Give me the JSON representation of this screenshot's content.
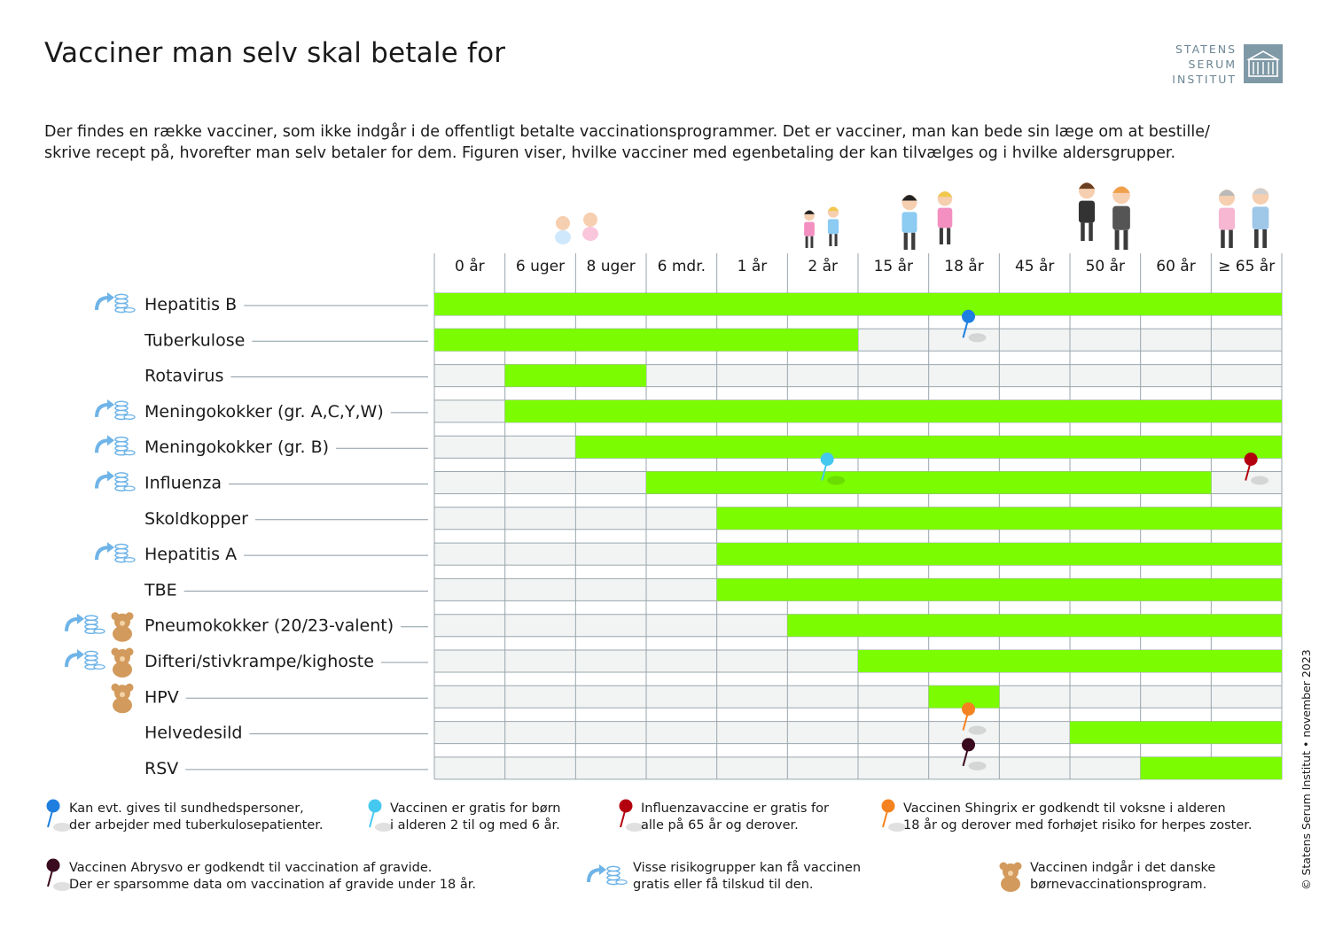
{
  "title": "Vacciner man selv skal betale for",
  "intro": {
    "line1": "Der findes en række vacciner, som ikke indgår i de offentligt betalte vaccinationsprogrammer. Det er vacciner, man kan bede sin læge om at bestille/",
    "line2": "skrive recept på, hvorefter man selv betaler for dem. Figuren viser, hvilke vacciner med egenbetaling der kan tilvælges og i hvilke aldersgrupper."
  },
  "logo": {
    "line1": "STATENS",
    "line2": "SERUM",
    "line3": "INSTITUT",
    "icon": "building-icon"
  },
  "copyright": "© Statens Serum Institut • november 2023",
  "colors": {
    "bar": "#7cfc00",
    "cell": "#f1f4f3",
    "grid": "#9aa6ad",
    "pin_blue": "#1f7fe0",
    "pin_cyan": "#45c8f0",
    "pin_red": "#b3000f",
    "pin_orange": "#f58220",
    "pin_dark": "#3a0a1f",
    "arrow": "#6fb4e8",
    "bear": "#d29a5c"
  },
  "chart_data": {
    "type": "table",
    "columns": [
      "0 år",
      "6 uger",
      "8 uger",
      "6 mdr.",
      "1 år",
      "2 år",
      "15 år",
      "18 år",
      "45 år",
      "50 år",
      "60 år",
      "≥ 65 år"
    ],
    "rows": [
      {
        "name": "Hepatitis B",
        "start": 0,
        "end": 12,
        "risk": true,
        "child": false,
        "pin": null
      },
      {
        "name": "Tuberkulose",
        "start": 0,
        "end": 6,
        "risk": false,
        "child": false,
        "pin": {
          "col": 7,
          "color": "pin_blue"
        }
      },
      {
        "name": "Rotavirus",
        "start": 1,
        "end": 3,
        "risk": false,
        "child": false,
        "pin": null
      },
      {
        "name": "Meningokokker (gr. A,C,Y,W)",
        "start": 1,
        "end": 12,
        "risk": true,
        "child": false,
        "pin": null
      },
      {
        "name": "Meningokokker (gr. B)",
        "start": 2,
        "end": 12,
        "risk": true,
        "child": false,
        "pin": null
      },
      {
        "name": "Influenza",
        "start": 3,
        "end": 11,
        "risk": true,
        "child": false,
        "pins": [
          {
            "col": 5,
            "color": "pin_cyan"
          },
          {
            "col": 11,
            "color": "pin_red"
          }
        ]
      },
      {
        "name": "Skoldkopper",
        "start": 4,
        "end": 12,
        "risk": false,
        "child": false,
        "pin": null
      },
      {
        "name": "Hepatitis A",
        "start": 4,
        "end": 12,
        "risk": true,
        "child": false,
        "pin": null
      },
      {
        "name": "TBE",
        "start": 4,
        "end": 12,
        "risk": false,
        "child": false,
        "pin": null
      },
      {
        "name": "Pneumokokker (20/23-valent)",
        "start": 5,
        "end": 12,
        "risk": true,
        "child": true,
        "pin": null
      },
      {
        "name": "Difteri/stivkrampe/kighoste",
        "start": 6,
        "end": 12,
        "risk": true,
        "child": true,
        "pin": null
      },
      {
        "name": "HPV",
        "start": 7,
        "end": 8,
        "risk": false,
        "child": true,
        "pin": null
      },
      {
        "name": "Helvedesild",
        "start": 9,
        "end": 12,
        "risk": false,
        "child": false,
        "pin": {
          "col": 7,
          "color": "pin_orange"
        }
      },
      {
        "name": "RSV",
        "start": 10,
        "end": 12,
        "risk": false,
        "child": false,
        "pin": {
          "col": 7,
          "color": "pin_dark"
        }
      }
    ]
  },
  "legend": [
    {
      "icon": "blue-pin-icon",
      "color": "pin_blue",
      "line1": "Kan evt. gives til sundhedspersoner,",
      "line2": "der arbejder med tuberkulosepatienter."
    },
    {
      "icon": "cyan-pin-icon",
      "color": "pin_cyan",
      "line1": "Vaccinen er gratis for børn",
      "line2": "i alderen 2 til og med 6 år."
    },
    {
      "icon": "red-pin-icon",
      "color": "pin_red",
      "line1": "Influenzavaccine er gratis for",
      "line2": "alle på 65 år og derover."
    },
    {
      "icon": "orange-pin-icon",
      "color": "pin_orange",
      "line1": "Vaccinen Shingrix er godkendt til voksne i alderen",
      "line2": "18 år og derover med forhøjet risiko for herpes zoster."
    },
    {
      "icon": "dark-pin-icon",
      "color": "pin_dark",
      "line1": "Vaccinen Abrysvo er godkendt til vaccination af gravide.",
      "line2": "Der er sparsomme data om vaccination af gravide under 18 år."
    },
    {
      "icon": "subsidy-arrow-coins-icon",
      "color": "arrow",
      "line1": "Visse risikogrupper kan få vaccinen",
      "line2": "gratis eller få tilskud til den."
    },
    {
      "icon": "teddy-bear-icon",
      "color": "bear",
      "line1": "Vaccinen indgår i det danske",
      "line2": "børnevaccinationsprogram."
    }
  ]
}
